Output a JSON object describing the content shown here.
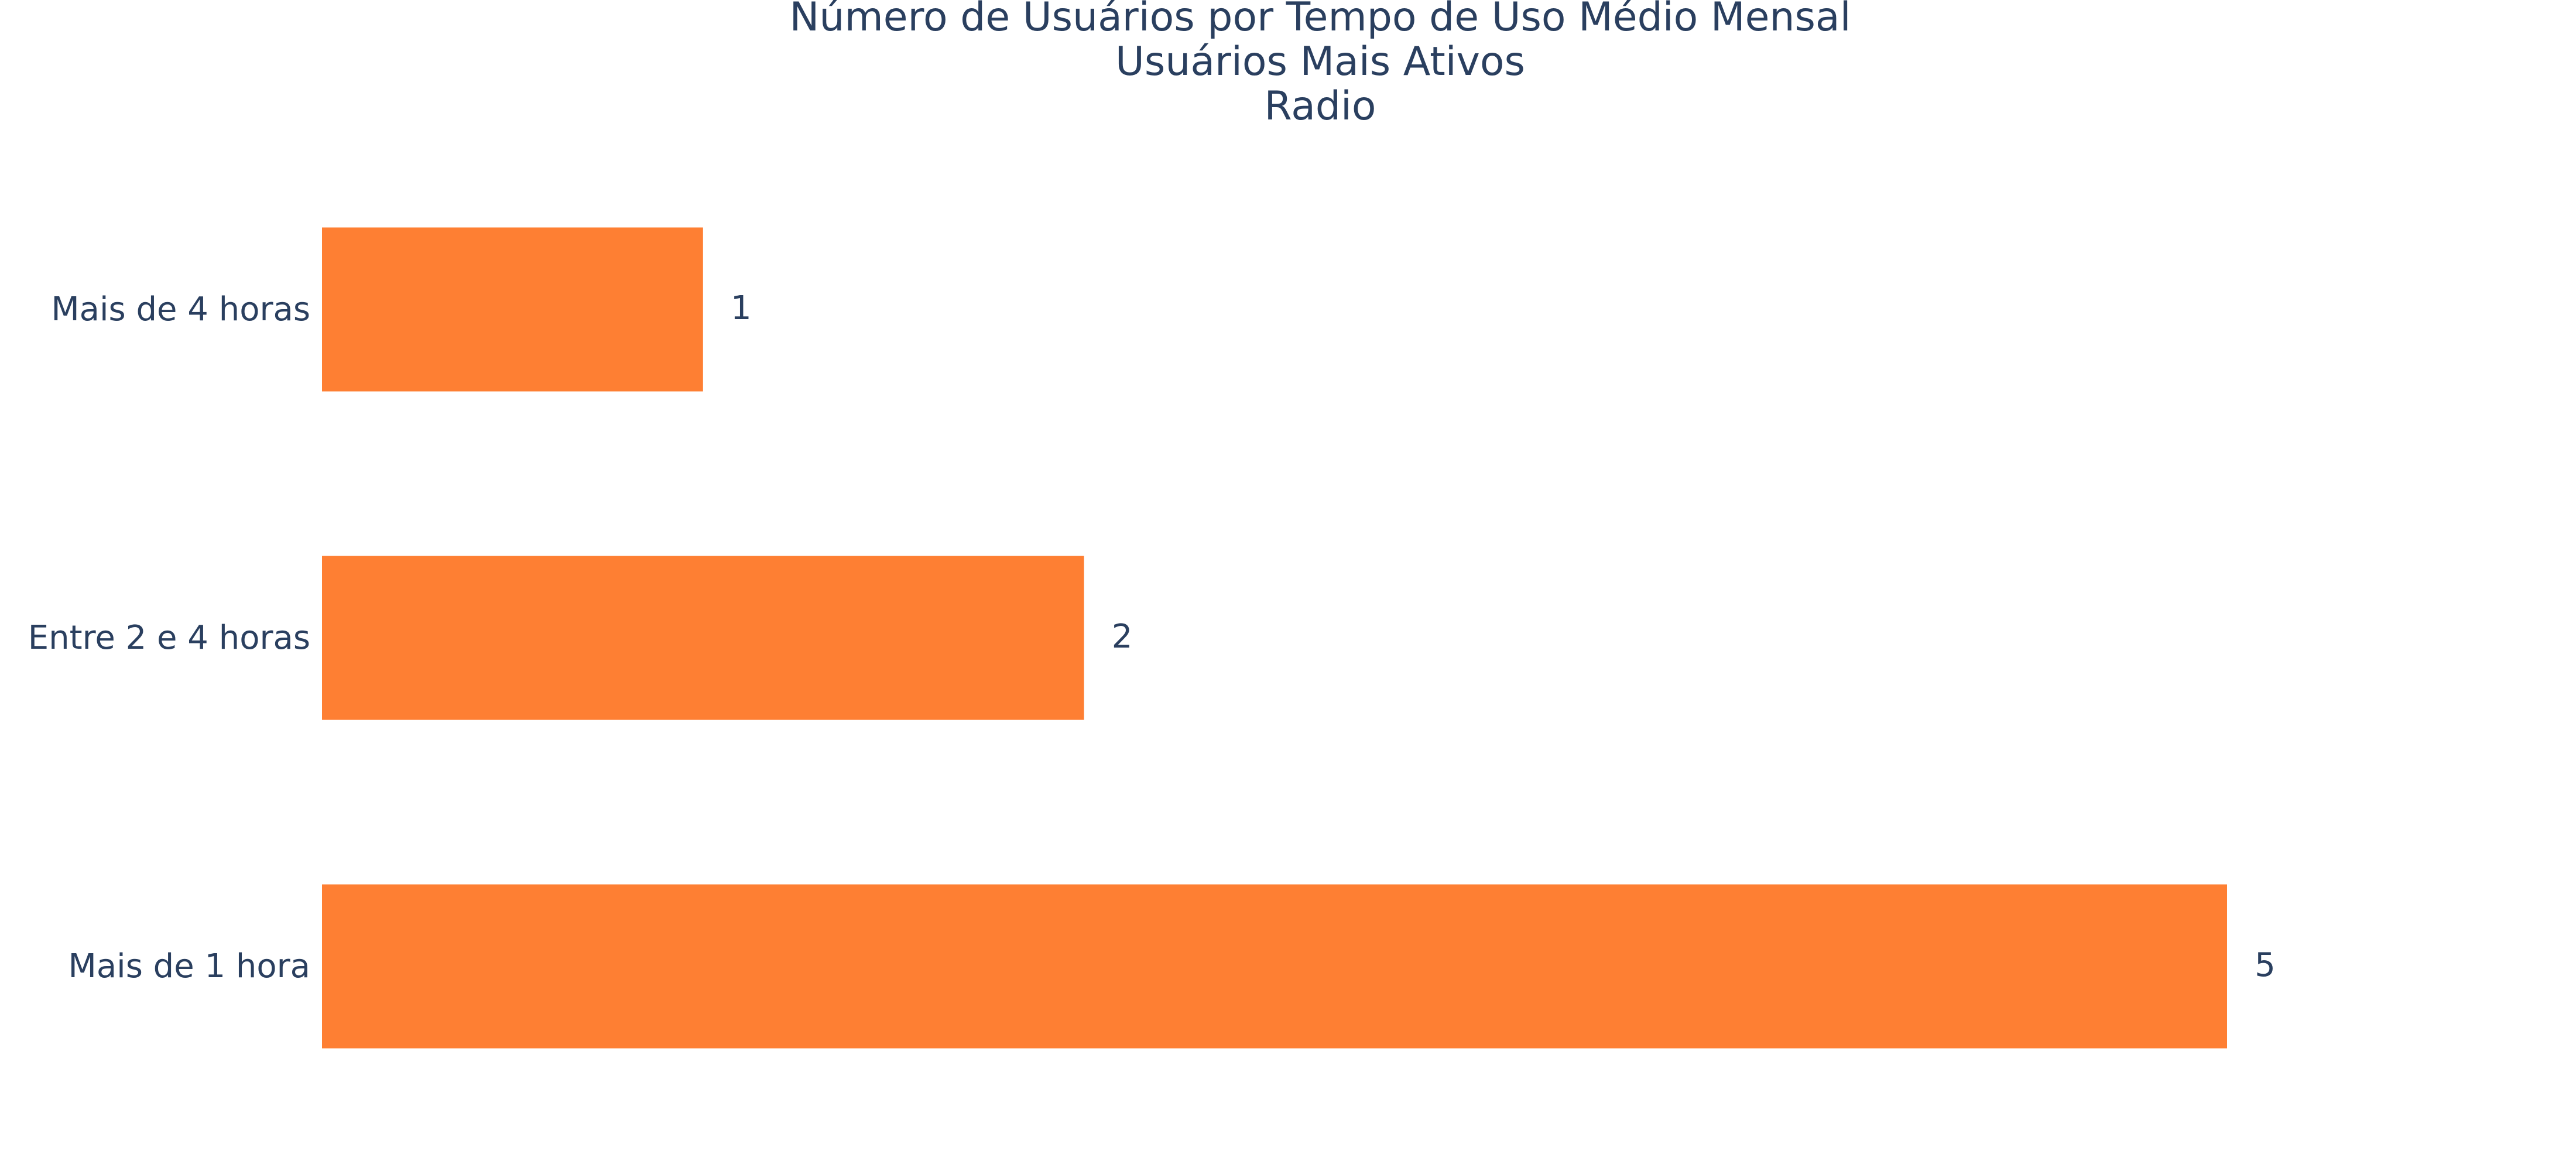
{
  "chart_data": {
    "type": "bar",
    "orientation": "horizontal",
    "title_lines": [
      "Número de Usuários por Tempo de Uso Médio Mensal",
      "Usuários Mais Ativos",
      "Radio"
    ],
    "categories": [
      "Mais de 4 horas",
      "Entre 2 e 4 horas",
      "Mais de 1 hora"
    ],
    "values": [
      1,
      2,
      5
    ],
    "data_labels": [
      "1",
      "2",
      "5"
    ],
    "xlabel": "",
    "ylabel": "",
    "xlim": [
      0,
      5.6
    ],
    "grid": false,
    "legend": "none",
    "bar_color": "#fe7f33",
    "text_color": "#2a3f5f"
  }
}
